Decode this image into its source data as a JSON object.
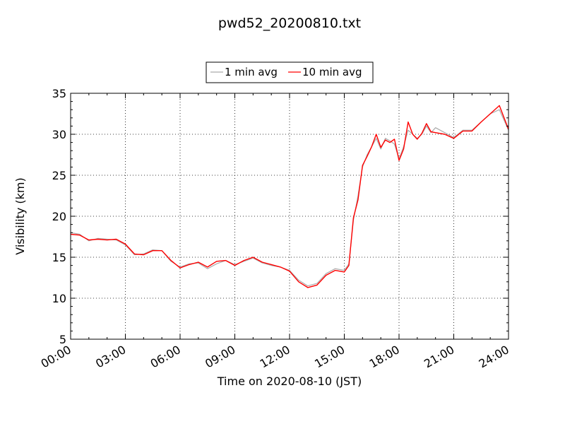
{
  "chart_data": {
    "type": "line",
    "title": "pwd52_20200810.txt",
    "xlabel": "Time on 2020-08-10 (JST)",
    "ylabel": "Visibility (km)",
    "xlim": [
      "00:00",
      "24:00"
    ],
    "ylim": [
      5,
      35
    ],
    "x_ticks": [
      "00:00",
      "03:00",
      "06:00",
      "09:00",
      "12:00",
      "15:00",
      "18:00",
      "21:00",
      "24:00"
    ],
    "y_ticks": [
      5,
      10,
      15,
      20,
      25,
      30,
      35
    ],
    "grid": true,
    "legend_position": "top-center",
    "series": [
      {
        "name": "1 min avg",
        "color": "#aaaaaa",
        "x_hours": [
          0,
          0.5,
          1,
          1.5,
          2,
          2.5,
          3,
          3.5,
          4,
          4.5,
          5,
          5.5,
          6,
          6.5,
          7,
          7.5,
          8,
          8.5,
          9,
          9.5,
          10,
          10.5,
          11,
          11.5,
          12,
          12.5,
          13,
          13.5,
          14,
          14.5,
          15,
          15.25,
          15.5,
          15.75,
          16,
          16.25,
          16.5,
          16.75,
          17,
          17.25,
          17.5,
          17.75,
          18,
          18.25,
          18.5,
          18.75,
          19,
          19.25,
          19.5,
          19.75,
          20,
          20.5,
          21,
          21.5,
          22,
          22.5,
          23,
          23.5,
          24
        ],
        "values": [
          18.0,
          17.8,
          17.0,
          17.3,
          17.2,
          17.1,
          16.5,
          15.3,
          15.4,
          15.9,
          15.8,
          14.5,
          13.8,
          14.2,
          14.3,
          13.6,
          14.2,
          14.6,
          14.1,
          14.5,
          14.9,
          14.3,
          14.0,
          13.8,
          13.4,
          12.2,
          11.5,
          11.8,
          13.0,
          13.6,
          13.4,
          14.2,
          19.5,
          22.5,
          26.0,
          27.5,
          28.5,
          29.5,
          28.2,
          29.5,
          29.2,
          28.8,
          27.0,
          28.5,
          30.5,
          30.0,
          29.5,
          30.0,
          31.0,
          30.2,
          30.8,
          30.2,
          29.6,
          30.5,
          30.5,
          31.5,
          32.5,
          33.0,
          30.5
        ]
      },
      {
        "name": "10 min avg",
        "color": "#ff0000",
        "x_hours": [
          0,
          0.5,
          1,
          1.5,
          2,
          2.5,
          3,
          3.5,
          4,
          4.5,
          5,
          5.5,
          6,
          6.5,
          7,
          7.5,
          8,
          8.5,
          9,
          9.5,
          10,
          10.5,
          11,
          11.5,
          12,
          12.5,
          13,
          13.5,
          14,
          14.5,
          15,
          15.25,
          15.5,
          15.75,
          16,
          16.25,
          16.5,
          16.75,
          17,
          17.25,
          17.5,
          17.75,
          18,
          18.25,
          18.5,
          18.75,
          19,
          19.25,
          19.5,
          19.75,
          20,
          20.5,
          21,
          21.5,
          22,
          22.5,
          23,
          23.5,
          24
        ],
        "values": [
          17.8,
          17.7,
          17.1,
          17.2,
          17.1,
          17.2,
          16.6,
          15.4,
          15.3,
          15.8,
          15.8,
          14.6,
          13.7,
          14.1,
          14.4,
          13.8,
          14.5,
          14.6,
          14.0,
          14.6,
          15.0,
          14.4,
          14.1,
          13.8,
          13.3,
          12.0,
          11.3,
          11.6,
          12.8,
          13.4,
          13.2,
          14.0,
          19.8,
          22.0,
          26.2,
          27.3,
          28.5,
          30.0,
          28.4,
          29.3,
          29.0,
          29.4,
          26.8,
          28.2,
          31.5,
          30.0,
          29.4,
          30.1,
          31.3,
          30.3,
          30.2,
          30.0,
          29.5,
          30.4,
          30.4,
          31.5,
          32.5,
          33.5,
          30.6
        ]
      }
    ]
  }
}
